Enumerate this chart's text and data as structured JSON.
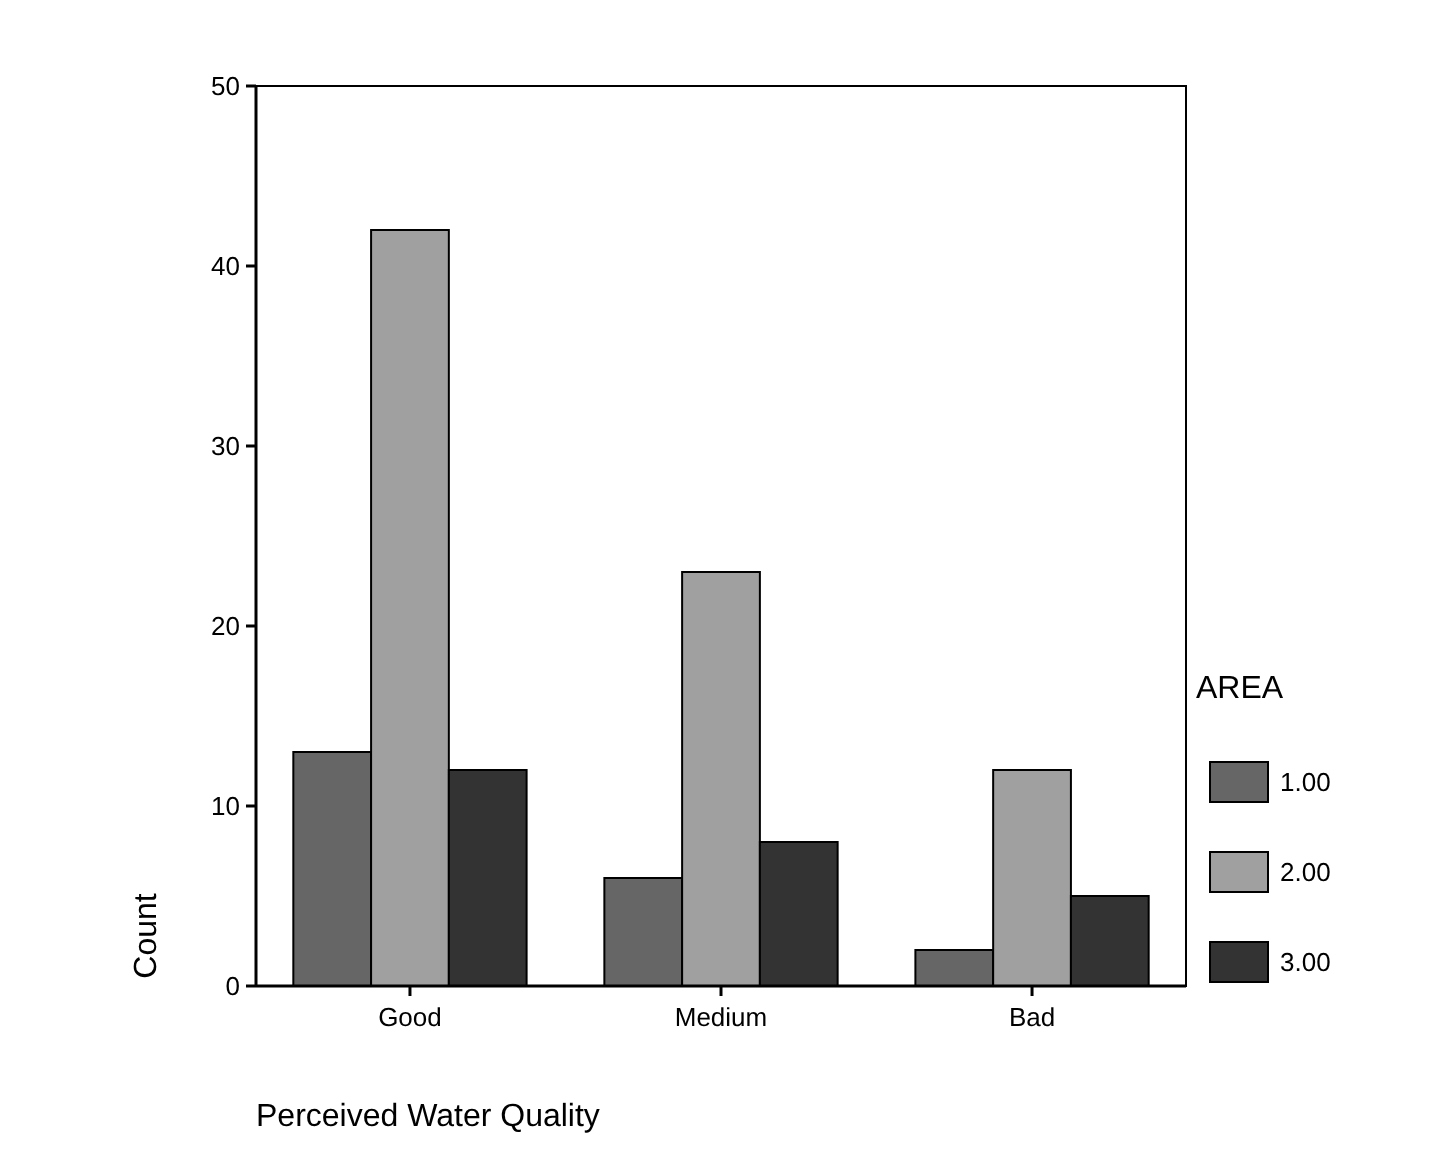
{
  "chart_data": {
    "type": "bar",
    "xlabel": "Perceived Water Quality",
    "ylabel": "Count",
    "legend_title": "AREA",
    "categories": [
      "Good",
      "Medium",
      "Bad"
    ],
    "series": [
      {
        "name": "1.00",
        "color": "#666666",
        "values": [
          13,
          6,
          2
        ]
      },
      {
        "name": "2.00",
        "color": "#a0a0a0",
        "values": [
          42,
          23,
          12
        ]
      },
      {
        "name": "3.00",
        "color": "#333333",
        "values": [
          12,
          8,
          5
        ]
      }
    ],
    "ylim": [
      0,
      50
    ],
    "yticks": [
      0,
      10,
      20,
      30,
      40,
      50
    ],
    "grid": false,
    "legend": "right"
  }
}
